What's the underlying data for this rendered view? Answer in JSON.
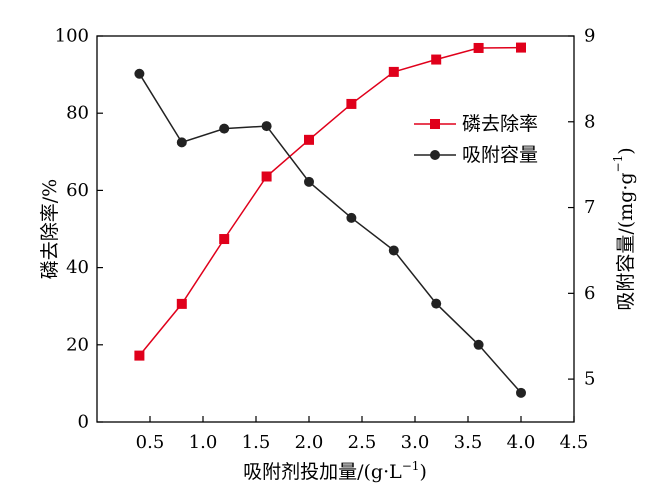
{
  "chart_data": {
    "type": "line",
    "x": [
      0.4,
      0.8,
      1.2,
      1.6,
      2.0,
      2.4,
      2.8,
      3.2,
      3.6,
      4.0
    ],
    "xlim": [
      0,
      4.5
    ],
    "xticks": [
      0.5,
      1.0,
      1.5,
      2.0,
      2.5,
      3.0,
      3.5,
      4.0,
      4.5
    ],
    "xtick_labels": [
      "0.5",
      "1.0",
      "1.5",
      "2.0",
      "2.5",
      "3.0",
      "3.5",
      "4.0",
      "4.5"
    ],
    "xlabel": {
      "main": "吸附剂投加量/(g·L",
      "sup": "−1",
      "tail": ")"
    },
    "ylim_left": [
      0,
      100
    ],
    "yticks_left": [
      "0",
      "20",
      "40",
      "60",
      "80",
      "100"
    ],
    "ylabel_left": "磷去除率/%",
    "ylim_right": [
      4.5,
      9
    ],
    "yticks_right": [
      "5",
      "6",
      "7",
      "8",
      "9"
    ],
    "ylabel_right": {
      "main": "吸附容量/(mg·g",
      "sup": "−1",
      "tail": ")"
    },
    "grid": false,
    "legend_position": "upper-right inside",
    "series": [
      {
        "name": "磷去除率",
        "axis": "left",
        "color": "#e0001b",
        "marker": "square",
        "values": [
          17.2,
          30.6,
          47.4,
          63.6,
          73.1,
          82.4,
          90.7,
          93.9,
          96.9,
          97.0
        ]
      },
      {
        "name": "吸附容量",
        "axis": "right",
        "color": "#222222",
        "marker": "circle",
        "values": [
          8.56,
          7.76,
          7.92,
          7.95,
          7.3,
          6.88,
          6.5,
          5.88,
          5.4,
          4.84
        ]
      }
    ]
  }
}
